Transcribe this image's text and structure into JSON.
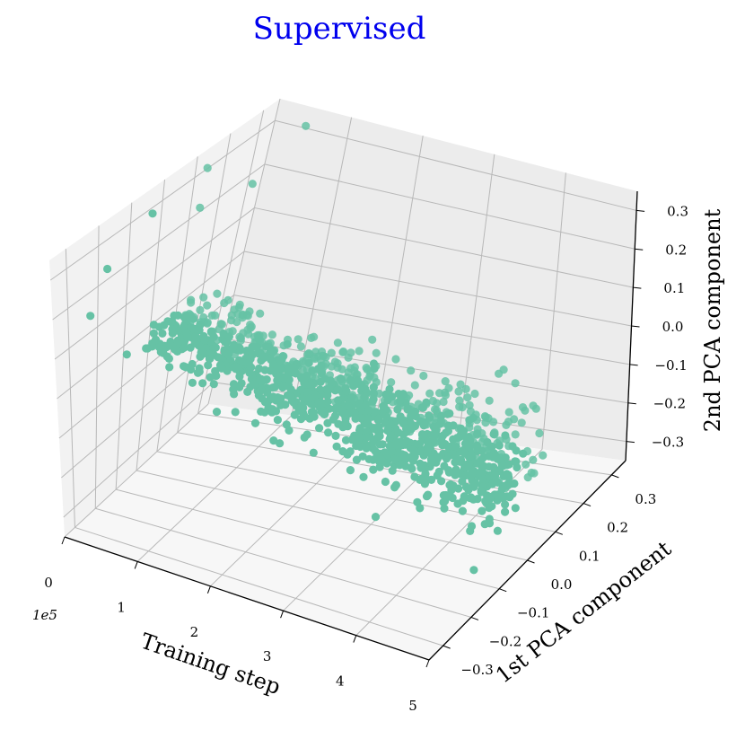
{
  "chart_data": {
    "type": "scatter",
    "projection": "3d",
    "title": "Supervised",
    "xlabel": "Training step",
    "ylabel": "1st PCA component",
    "zlabel": "2nd PCA component",
    "x_scale_label": "1e5",
    "xlim": [
      0,
      5
    ],
    "ylim": [
      -0.35,
      0.35
    ],
    "zlim": [
      -0.35,
      0.35
    ],
    "x_ticks": [
      "0",
      "1",
      "2",
      "3",
      "4",
      "5"
    ],
    "y_ticks": [
      "−0.3",
      "−0.2",
      "−0.1",
      "0.0",
      "0.1",
      "0.2",
      "0.3"
    ],
    "z_ticks": [
      "−0.3",
      "−0.2",
      "−0.1",
      "0.0",
      "0.1",
      "0.2",
      "0.3"
    ],
    "grid": true,
    "marker_color": "#66c2a5",
    "series": [
      {
        "points_description_outliers": [
          {
            "x": 0.05,
            "y": 0.12,
            "z": 0.22
          },
          {
            "x": 0.08,
            "y": -0.05,
            "z": 0.3
          },
          {
            "x": 0.12,
            "y": -0.2,
            "z": 0.25
          },
          {
            "x": 0.15,
            "y": 0.1,
            "z": 0.33
          },
          {
            "x": 0.4,
            "y": 0.2,
            "z": 0.25
          },
          {
            "x": 0.6,
            "y": 0.3,
            "z": 0.34
          },
          {
            "x": 0.3,
            "y": -0.3,
            "z": 0.2
          },
          {
            "x": 4.2,
            "y": 0.1,
            "z": 0.02
          },
          {
            "x": 4.6,
            "y": 0.05,
            "z": 0.05
          }
        ],
        "trend": {
          "x_range": [
            0.3,
            5.0
          ],
          "y_center_start": -0.02,
          "y_center_end": -0.05,
          "z_center_start": 0.04,
          "z_center_end": -0.12,
          "z_spread_start": 0.02,
          "z_spread_end": 0.09,
          "y_spread": 0.06,
          "count": 1200
        }
      }
    ]
  }
}
